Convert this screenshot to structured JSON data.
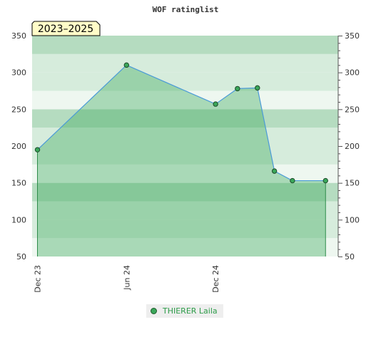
{
  "chart_data": {
    "type": "area",
    "title": "WOF ratinglist",
    "period_label": "2023–2025",
    "x_tick_labels": [
      "Dec 23",
      "Jun 24",
      "Dec 24"
    ],
    "x_ticks": [
      "2023-12",
      "2024-06",
      "2024-12"
    ],
    "xlim": [
      "2023-11-20",
      "2025-08-10"
    ],
    "ylim": [
      50,
      350
    ],
    "y_ticks": [
      50,
      100,
      150,
      200,
      250,
      300,
      350
    ],
    "y_axes": [
      "left",
      "right"
    ],
    "grid": true,
    "legend_position": "bottom-center",
    "series": [
      {
        "name": "THIERER Laila",
        "color": "#3aa75a",
        "points": [
          {
            "x": "2023-12-01",
            "y": 195
          },
          {
            "x": "2024-06-01",
            "y": 310
          },
          {
            "x": "2024-12-01",
            "y": 257
          },
          {
            "x": "2025-01-15",
            "y": 278
          },
          {
            "x": "2025-02-25",
            "y": 279
          },
          {
            "x": "2025-04-01",
            "y": 166
          },
          {
            "x": "2025-05-08",
            "y": 153
          },
          {
            "x": "2025-07-15",
            "y": 153
          }
        ]
      }
    ]
  },
  "colors": {
    "band_dark": "#b5dcc0",
    "band_light": "#d6ecdc",
    "band_pale": "#eef7f0",
    "area_fill": "#3aa75a",
    "line": "#4a9ad8",
    "period_box": "#fffcc8"
  }
}
